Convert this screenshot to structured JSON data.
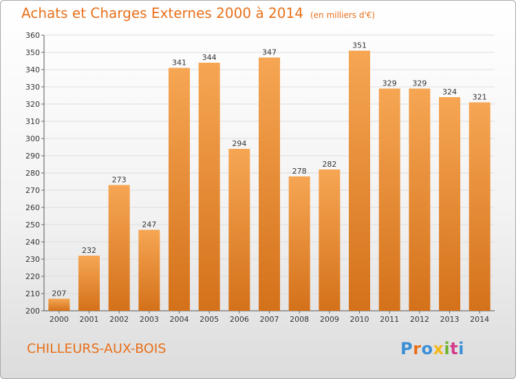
{
  "header": {
    "title": "Achats et Charges Externes 2000 à 2014",
    "subtitle": "(en milliers d'€)"
  },
  "footer": {
    "place": "CHILLEURS-AUX-BOIS",
    "logo_text": "Proxiti"
  },
  "colors": {
    "accent": "#e8701a",
    "bar_top": "#f6a653",
    "bar_bottom": "#d4711a",
    "grid": "#dddddd"
  },
  "chart_data": {
    "type": "bar",
    "title": "Achats et Charges Externes 2000 à 2014",
    "subtitle": "(en milliers d'€)",
    "xlabel": "",
    "ylabel": "",
    "categories": [
      "2000",
      "2001",
      "2002",
      "2003",
      "2004",
      "2005",
      "2006",
      "2007",
      "2008",
      "2009",
      "2010",
      "2011",
      "2012",
      "2013",
      "2014"
    ],
    "values": [
      207,
      232,
      273,
      247,
      341,
      344,
      294,
      347,
      278,
      282,
      351,
      329,
      329,
      324,
      321
    ],
    "ylim": [
      200,
      360
    ],
    "yticks": [
      200,
      210,
      220,
      230,
      240,
      250,
      260,
      270,
      280,
      290,
      300,
      310,
      320,
      330,
      340,
      350,
      360
    ],
    "grid": true,
    "data_labels": true
  }
}
